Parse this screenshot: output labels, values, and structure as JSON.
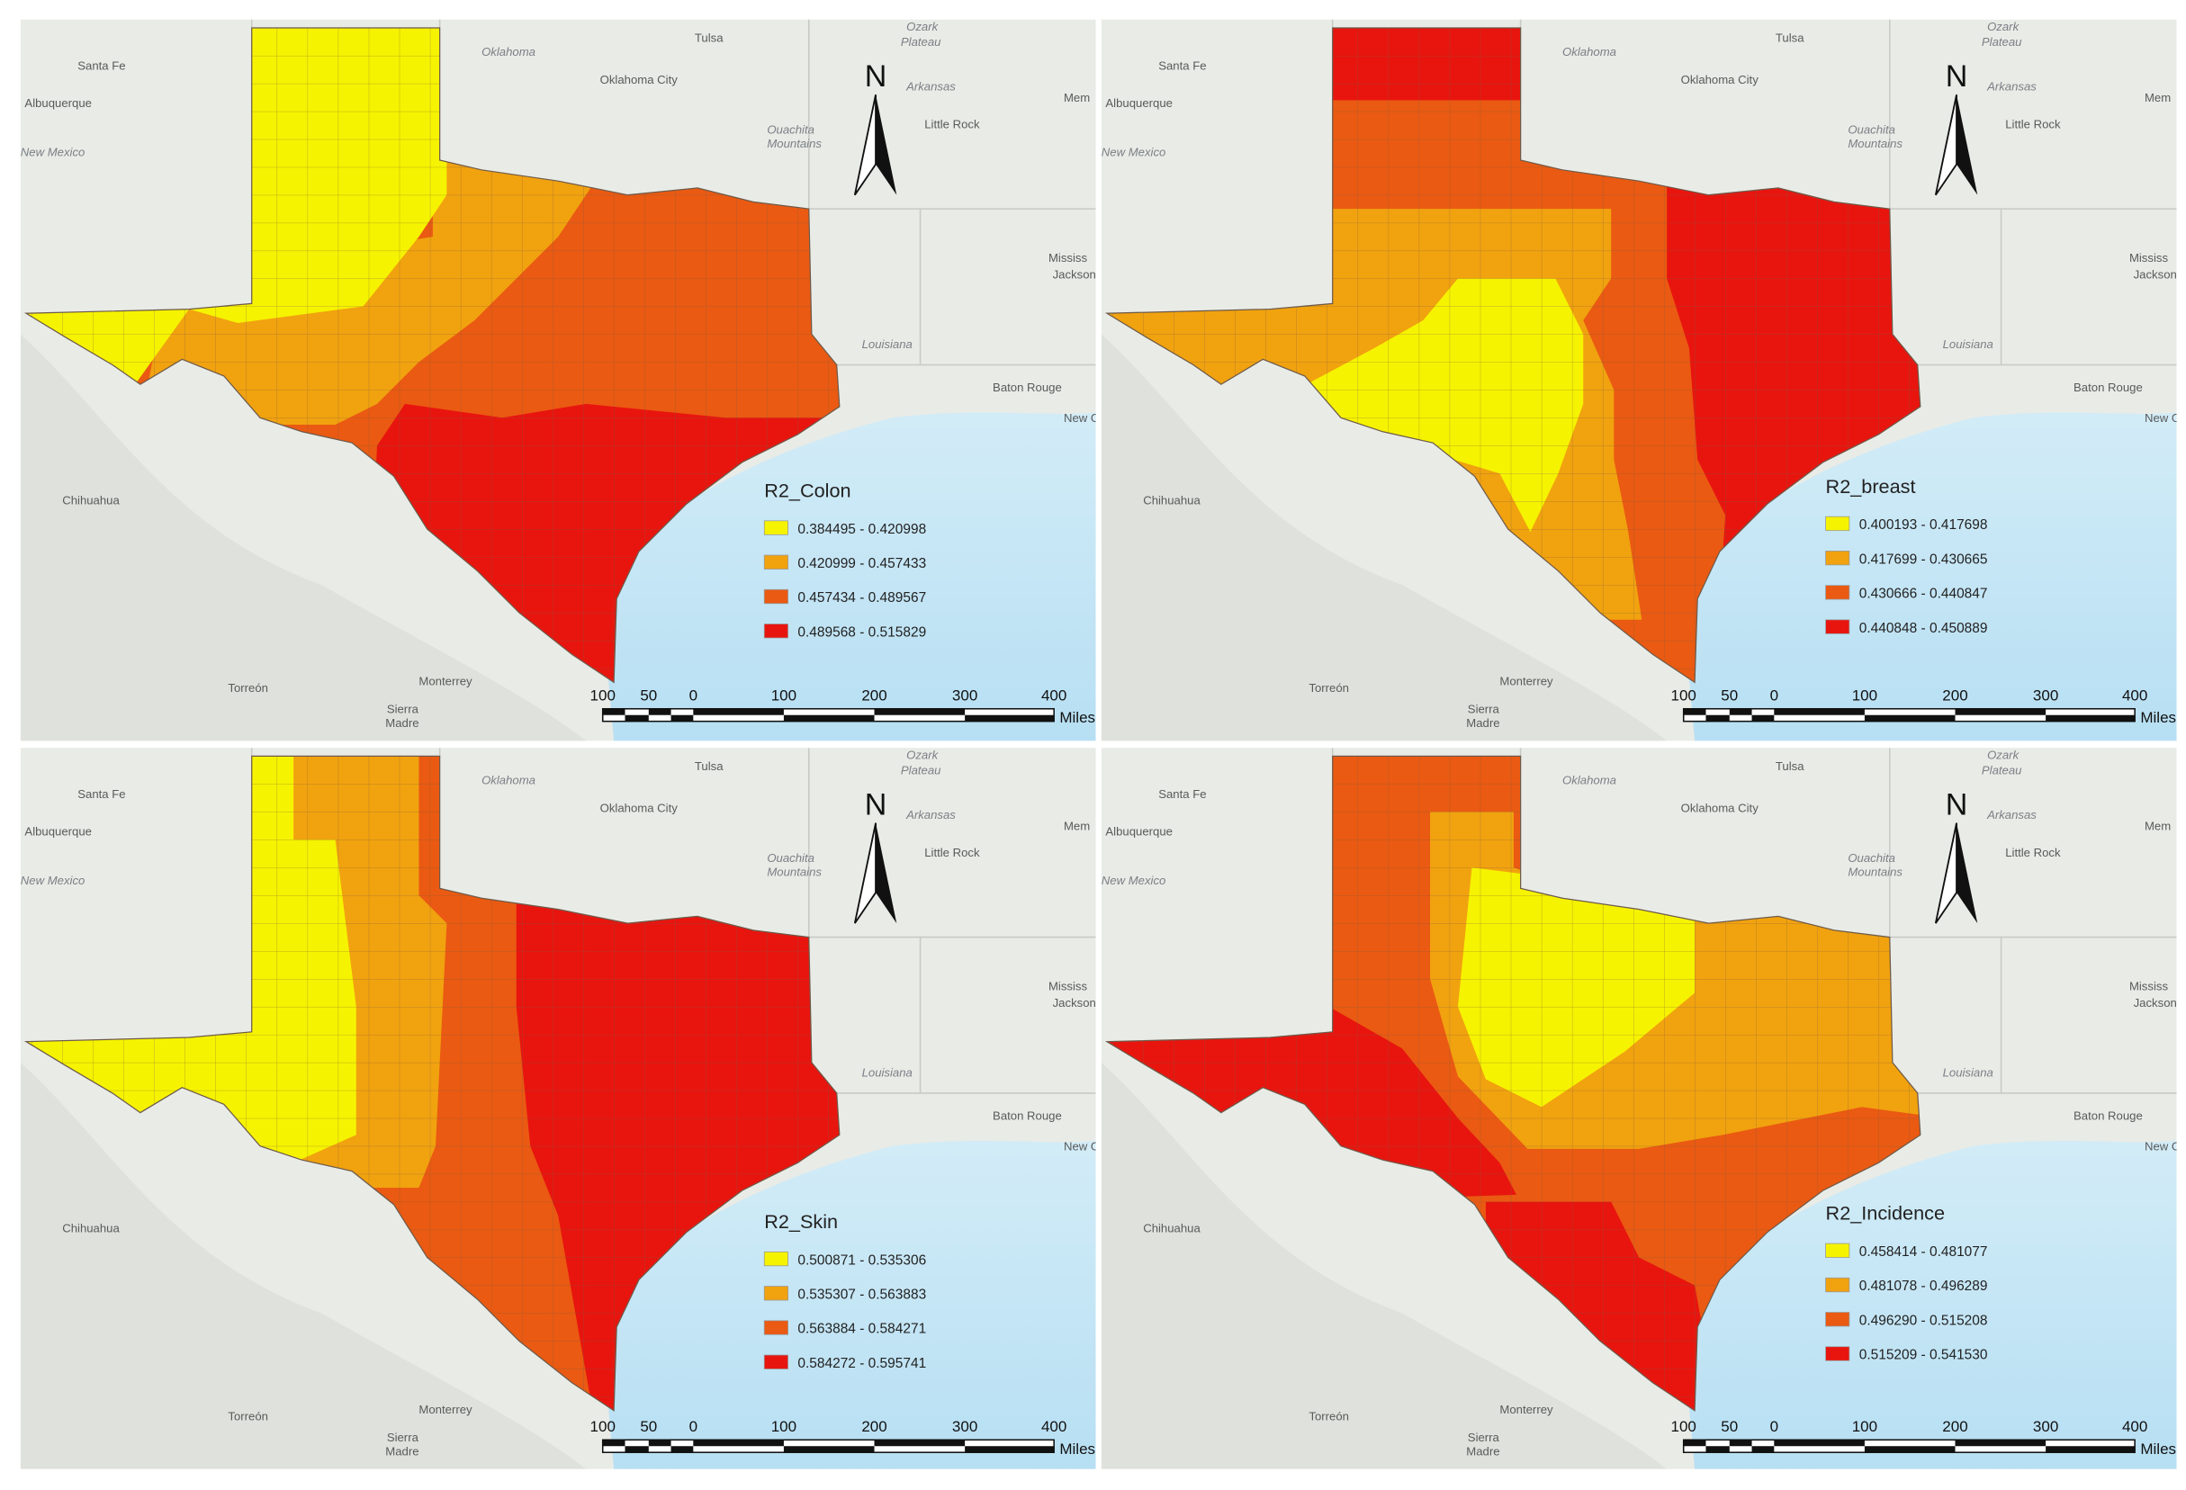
{
  "panels": [
    {
      "legend_title": "R2_Colon",
      "classes": [
        "0.384495 - 0.420998",
        "0.420999 - 0.457433",
        "0.457434 - 0.489567",
        "0.489568 - 0.515829"
      ]
    },
    {
      "legend_title": "R2_breast",
      "classes": [
        "0.400193 - 0.417698",
        "0.417699 - 0.430665",
        "0.430666 - 0.440847",
        "0.440848 - 0.450889"
      ]
    },
    {
      "legend_title": "R2_Skin",
      "classes": [
        "0.500871 - 0.535306",
        "0.535307 - 0.563883",
        "0.563884 - 0.584271",
        "0.584272 - 0.595741"
      ]
    },
    {
      "legend_title": "R2_Incidence",
      "classes": [
        "0.458414 - 0.481077",
        "0.481078 - 0.496289",
        "0.496290 - 0.515208",
        "0.515209 - 0.541530"
      ]
    }
  ],
  "colors": [
    "#f6f300",
    "#f1a20f",
    "#ea5a12",
    "#e8150f"
  ],
  "basemap_labels": [
    "Santa Fe",
    "Albuquerque",
    "New Mexico",
    "Oklahoma",
    "Tulsa",
    "Oklahoma City",
    "Ozark",
    "Plateau",
    "Arkansas",
    "Mem",
    "Ouachita",
    "Mountains",
    "Little Rock",
    "Mississ",
    "Jackson",
    "Louisiana",
    "Baton Rouge",
    "New O",
    "Chihuahua",
    "Torreón",
    "Monterrey",
    "Sierra",
    "Madre"
  ],
  "north_label": "N",
  "scale_labels": [
    100,
    50,
    0,
    100,
    200,
    300,
    400
  ],
  "scale_unit": "Miles"
}
